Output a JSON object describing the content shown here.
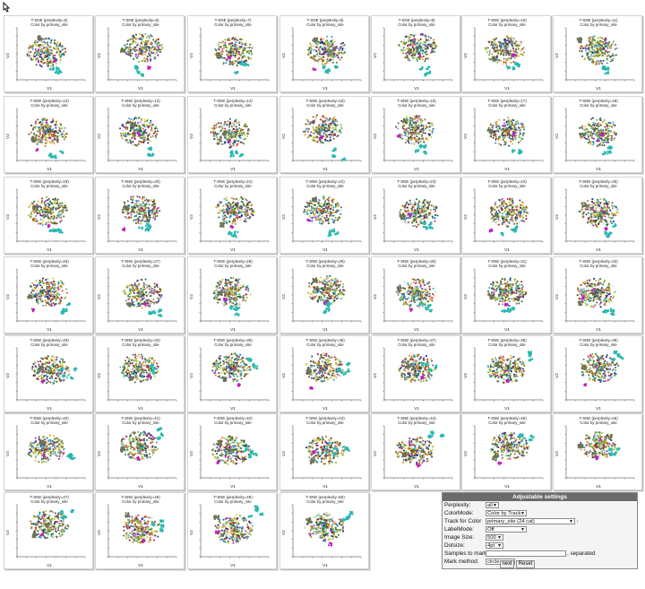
{
  "panels": [
    {
      "title": "T-SNE (perplexity=5)",
      "subtitle": "Color by primary_site"
    },
    {
      "title": "T-SNE (perplexity=6)",
      "subtitle": "Color by primary_site"
    },
    {
      "title": "T-SNE (perplexity=7)",
      "subtitle": "Color by primary_site"
    },
    {
      "title": "T-SNE (perplexity=8)",
      "subtitle": "Color by primary_site"
    },
    {
      "title": "T-SNE (perplexity=9)",
      "subtitle": "Color by primary_site"
    },
    {
      "title": "T-SNE (perplexity=10)",
      "subtitle": "Color by primary_site"
    },
    {
      "title": "T-SNE (perplexity=11)",
      "subtitle": "Color by primary_site"
    },
    {
      "title": "T-SNE (perplexity=12)",
      "subtitle": "Color by primary_site"
    },
    {
      "title": "T-SNE (perplexity=13)",
      "subtitle": "Color by primary_site"
    },
    {
      "title": "T-SNE (perplexity=14)",
      "subtitle": "Color by primary_site"
    },
    {
      "title": "T-SNE (perplexity=15)",
      "subtitle": "Color by primary_site"
    },
    {
      "title": "T-SNE (perplexity=16)",
      "subtitle": "Color by primary_site"
    },
    {
      "title": "T-SNE (perplexity=17)",
      "subtitle": "Color by primary_site"
    },
    {
      "title": "T-SNE (perplexity=18)",
      "subtitle": "Color by primary_site"
    },
    {
      "title": "T-SNE (perplexity=19)",
      "subtitle": "Color by primary_site"
    },
    {
      "title": "T-SNE (perplexity=20)",
      "subtitle": "Color by primary_site"
    },
    {
      "title": "T-SNE (perplexity=21)",
      "subtitle": "Color by primary_site"
    },
    {
      "title": "T-SNE (perplexity=22)",
      "subtitle": "Color by primary_site"
    },
    {
      "title": "T-SNE (perplexity=23)",
      "subtitle": "Color by primary_site"
    },
    {
      "title": "T-SNE (perplexity=24)",
      "subtitle": "Color by primary_site"
    },
    {
      "title": "T-SNE (perplexity=25)",
      "subtitle": "Color by primary_site"
    },
    {
      "title": "T-SNE (perplexity=26)",
      "subtitle": "Color by primary_site"
    },
    {
      "title": "T-SNE (perplexity=27)",
      "subtitle": "Color by primary_site"
    },
    {
      "title": "T-SNE (perplexity=28)",
      "subtitle": "Color by primary_site"
    },
    {
      "title": "T-SNE (perplexity=29)",
      "subtitle": "Color by primary_site"
    },
    {
      "title": "T-SNE (perplexity=30)",
      "subtitle": "Color by primary_site"
    },
    {
      "title": "T-SNE (perplexity=31)",
      "subtitle": "Color by primary_site"
    },
    {
      "title": "T-SNE (perplexity=32)",
      "subtitle": "Color by primary_site"
    },
    {
      "title": "T-SNE (perplexity=33)",
      "subtitle": "Color by primary_site"
    },
    {
      "title": "T-SNE (perplexity=34)",
      "subtitle": "Color by primary_site"
    },
    {
      "title": "T-SNE (perplexity=35)",
      "subtitle": "Color by primary_site"
    },
    {
      "title": "T-SNE (perplexity=36)",
      "subtitle": "Color by primary_site"
    },
    {
      "title": "T-SNE (perplexity=37)",
      "subtitle": "Color by primary_site"
    },
    {
      "title": "T-SNE (perplexity=38)",
      "subtitle": "Color by primary_site"
    },
    {
      "title": "T-SNE (perplexity=39)",
      "subtitle": "Color by primary_site"
    },
    {
      "title": "T-SNE (perplexity=40)",
      "subtitle": "Color by primary_site"
    },
    {
      "title": "T-SNE (perplexity=41)",
      "subtitle": "Color by primary_site"
    },
    {
      "title": "T-SNE (perplexity=42)",
      "subtitle": "Color by primary_site"
    },
    {
      "title": "T-SNE (perplexity=43)",
      "subtitle": "Color by primary_site"
    },
    {
      "title": "T-SNE (perplexity=44)",
      "subtitle": "Color by primary_site"
    },
    {
      "title": "T-SNE (perplexity=45)",
      "subtitle": "Color by primary_site"
    },
    {
      "title": "T-SNE (perplexity=46)",
      "subtitle": "Color by primary_site"
    },
    {
      "title": "T-SNE (perplexity=47)",
      "subtitle": "Color by primary_site"
    },
    {
      "title": "T-SNE (perplexity=48)",
      "subtitle": "Color by primary_site"
    },
    {
      "title": "T-SNE (perplexity=49)",
      "subtitle": "Color by primary_site"
    },
    {
      "title": "T-SNE (perplexity=50)",
      "subtitle": "Color by primary_site"
    }
  ],
  "axes": {
    "xlabel": "V1",
    "ylabel": "V2"
  },
  "settings": {
    "title": "Adjustable settings",
    "perplexity_label": "Perplexity:",
    "perplexity_value": "all",
    "colormode_label": "ColorMode:",
    "colormode_value": "Color by Track",
    "track_label": "Track for Color",
    "track_value": "primary_site (24 cat)",
    "labelmode_label": "LabelMode:",
    "labelmode_value": "Off",
    "imagesize_label": "Image Size:",
    "imagesize_value": "500",
    "dotsize_label": "Dotsize:",
    "dotsize_value": "4pt",
    "samples_label": "Samples to mark:",
    "samples_value": "",
    "samples_suffix": ", separated",
    "markmethod_label": "Mark method:",
    "markmethod_value": "circle",
    "next_label": "next",
    "reset_label": "Reset"
  },
  "palette": [
    "#1f2a8a",
    "#2e4fb0",
    "#3d9bd6",
    "#a5c83c",
    "#7fb34a",
    "#c4b12e",
    "#d99a1c",
    "#e86f1a",
    "#b3261e",
    "#8e2c8f",
    "#c42fb8",
    "#6e7a3a",
    "#5c6b4e",
    "#4d4d4d",
    "#9aa33a",
    "#3f7f46",
    "#c8c83a",
    "#1b7f7f",
    "#8a5a2b",
    "#e0c84a",
    "#6fa0c8",
    "#2a6a2a",
    "#d6d6d6",
    "#28b8b0"
  ],
  "cluster_teal": "#28b8b0",
  "cluster_olive": "#6b7355",
  "cluster_magenta": "#c21fc2"
}
